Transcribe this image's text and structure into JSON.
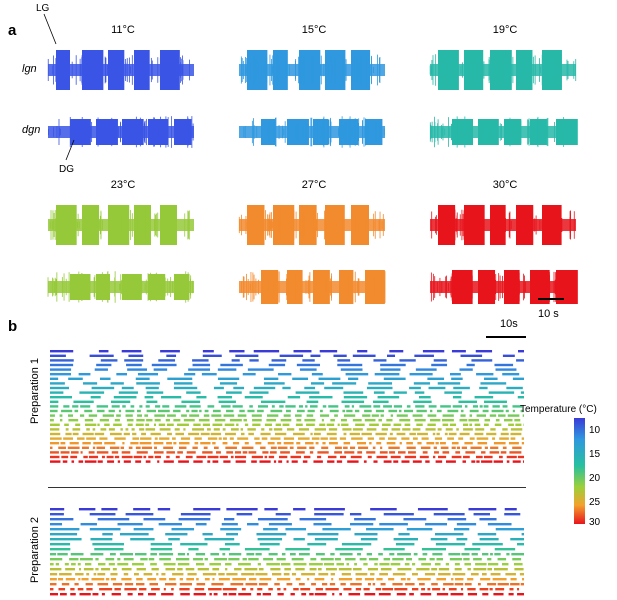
{
  "panel_a": {
    "letter": "a",
    "traces": [
      {
        "temp_label": "11°C",
        "color": "#3a55e6"
      },
      {
        "temp_label": "15°C",
        "color": "#2f98df"
      },
      {
        "temp_label": "19°C",
        "color": "#27b8a8"
      },
      {
        "temp_label": "23°C",
        "color": "#96c93a"
      },
      {
        "temp_label": "27°C",
        "color": "#f28a2e"
      },
      {
        "temp_label": "30°C",
        "color": "#e8141c"
      }
    ],
    "row_labels": {
      "lgn": "lgn",
      "dgn": "dgn"
    },
    "annotations": {
      "lg": "LG",
      "dg": "DG"
    },
    "scale_bar": "10 s"
  },
  "panel_b": {
    "letter": "b",
    "scale_bar": "10s",
    "prep1_label": "Preparation 1",
    "prep2_label": "Preparation 2",
    "colorbar": {
      "title": "Temperature (°C)",
      "ticks": [
        "10",
        "15",
        "20",
        "25",
        "30"
      ],
      "min": 8,
      "max": 30
    }
  }
}
